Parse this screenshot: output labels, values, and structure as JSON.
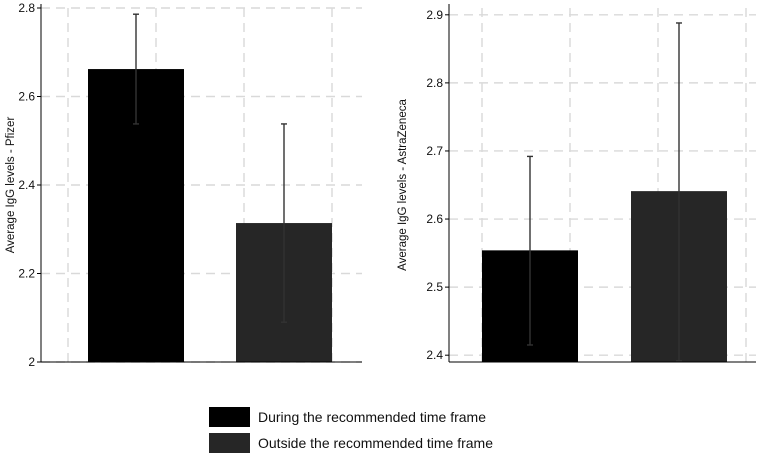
{
  "chart_data": [
    {
      "type": "bar",
      "categories": [
        "During the recommended time frame",
        "Outside the recommended time frame"
      ],
      "values": [
        2.662,
        2.314
      ],
      "error_low": [
        2.538,
        2.09
      ],
      "error_high": [
        2.786,
        2.538
      ],
      "colors": [
        "#000000",
        "#262626"
      ],
      "ylabel": "Average IgG levels - Pfizer",
      "ylim": [
        2.0,
        2.8
      ],
      "yticks": [
        2.0,
        2.2,
        2.4,
        2.6,
        2.8
      ],
      "ytick_labels": [
        "2",
        "2.2",
        "2.4",
        "2.6",
        "2.8"
      ],
      "grid": true
    },
    {
      "type": "bar",
      "categories": [
        "During the recommended time frame",
        "Outside the recommended time frame"
      ],
      "values": [
        2.554,
        2.641
      ],
      "error_low": [
        2.415,
        2.392
      ],
      "error_high": [
        2.692,
        2.888
      ],
      "colors": [
        "#000000",
        "#262626"
      ],
      "ylabel": "Average IgG levels - AstraZeneca",
      "ylim": [
        2.39,
        2.91
      ],
      "yticks": [
        2.4,
        2.5,
        2.6,
        2.7,
        2.8,
        2.9
      ],
      "ytick_labels": [
        "2.4",
        "2.5",
        "2.6",
        "2.7",
        "2.8",
        "2.9"
      ],
      "grid": true
    }
  ],
  "legend": {
    "items": [
      {
        "label": "During the recommended time frame",
        "color": "#000000"
      },
      {
        "label": "Outside the recommended time frame",
        "color": "#262626"
      }
    ]
  }
}
